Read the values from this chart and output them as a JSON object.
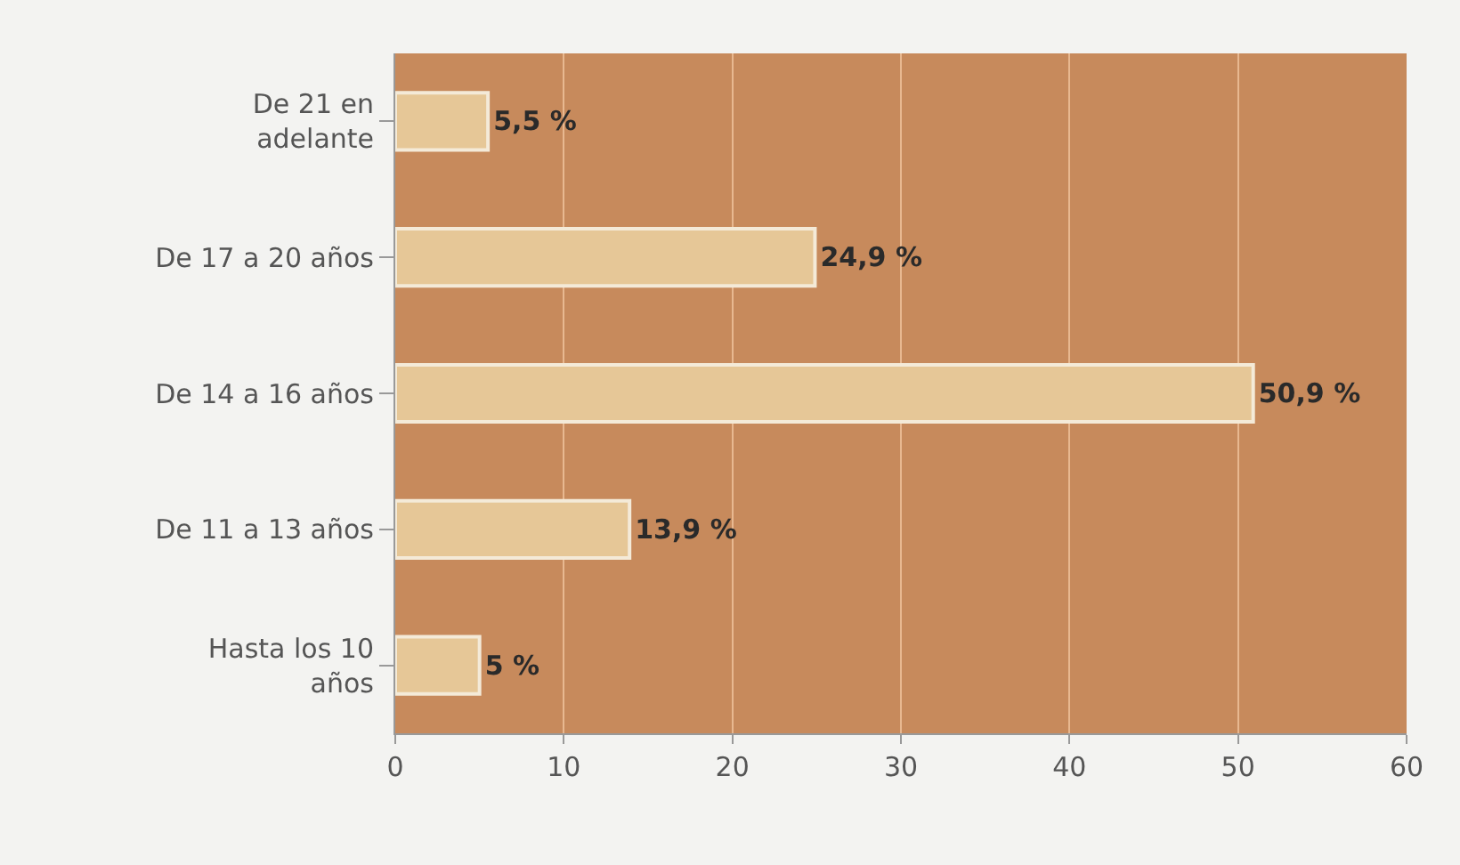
{
  "chart_data": {
    "type": "bar",
    "orientation": "horizontal",
    "categories": [
      "De 21 en\nadelante",
      "De 17 a 20 años",
      "De 14 a 16 años",
      "De 11 a 13 años",
      "Hasta los 10\naños"
    ],
    "values": [
      5.5,
      24.9,
      50.9,
      13.9,
      5
    ],
    "value_labels": [
      "5,5 %",
      "24,9 %",
      "50,9 %",
      "13,9 %",
      "5 %"
    ],
    "color": "#e6c797",
    "xlim": [
      0,
      60
    ],
    "xticks": [
      0,
      10,
      20,
      30,
      40,
      50,
      60
    ],
    "grid": "x"
  }
}
